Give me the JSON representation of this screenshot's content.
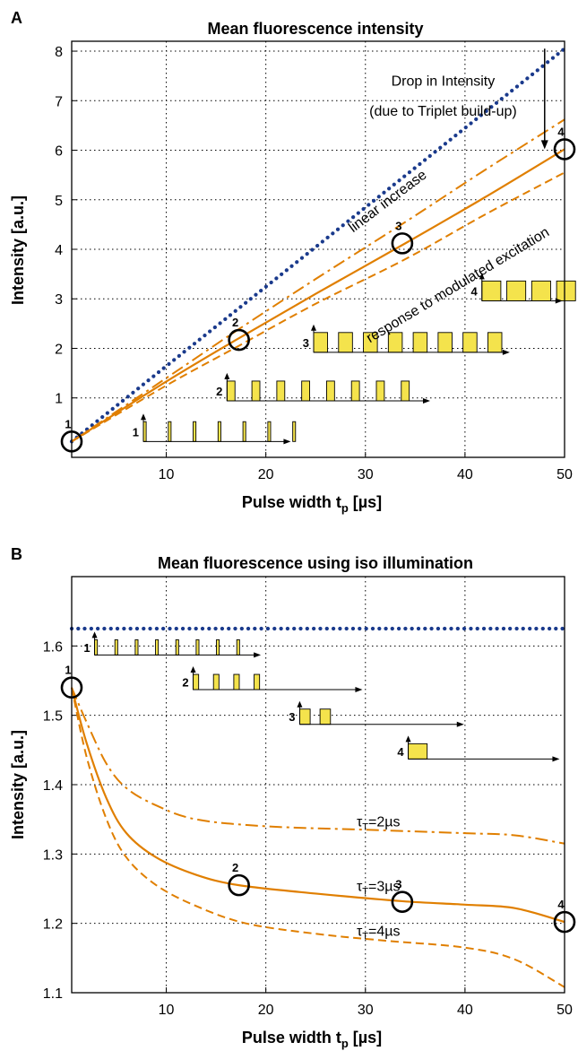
{
  "colors": {
    "orange": "#E07F00",
    "blue": "#1A3A8C",
    "pulse_fill": "#F4E34C",
    "axis": "#000000",
    "grid": "#000000"
  },
  "chart_data": [
    {
      "panel_label": "A",
      "type": "line",
      "title": "Mean fluorescence intensity",
      "xlabel": "Pulse width t",
      "xlabel_sub": "p",
      "xlabel_unit": " [µs]",
      "ylabel": "Intensity [a.u.]",
      "xlim": [
        0.5,
        50
      ],
      "ylim": [
        -0.2,
        8.2
      ],
      "xticks": [
        10,
        20,
        30,
        40,
        50
      ],
      "yticks": [
        1,
        2,
        3,
        4,
        5,
        6,
        7,
        8
      ],
      "grid": true,
      "series": [
        {
          "style": "dotted-blue",
          "x": [
            0.5,
            50
          ],
          "y": [
            0.12,
            8.05
          ]
        },
        {
          "style": "dashdot-orange",
          "x": [
            0.5,
            10,
            17,
            25,
            34,
            42,
            50
          ],
          "y": [
            0.12,
            1.4,
            2.35,
            3.4,
            4.55,
            5.6,
            6.62
          ]
        },
        {
          "style": "solid-orange",
          "x": [
            0.5,
            10,
            17,
            25,
            34,
            42,
            50
          ],
          "y": [
            0.12,
            1.33,
            2.17,
            3.1,
            4.12,
            5.05,
            6.02
          ]
        },
        {
          "style": "dashed-orange",
          "x": [
            0.5,
            10,
            17,
            25,
            34,
            42,
            50
          ],
          "y": [
            0.12,
            1.25,
            2.02,
            2.9,
            3.8,
            4.7,
            5.55
          ]
        }
      ],
      "markers": [
        {
          "label": "1",
          "x": 0.5,
          "y": 0.12
        },
        {
          "label": "2",
          "x": 17.3,
          "y": 2.17
        },
        {
          "label": "3",
          "x": 33.7,
          "y": 4.12
        },
        {
          "label": "4",
          "x": 50,
          "y": 6.02
        }
      ],
      "annotations": [
        {
          "text": "Drop in Intensity",
          "x": 37.8,
          "y": 7.3
        },
        {
          "text": "(due to Triplet build-up)",
          "x": 37.8,
          "y": 6.7
        }
      ],
      "rotated_labels": [
        {
          "text": "linear increase",
          "x": 32.5,
          "y": 4.9,
          "angle": -37
        },
        {
          "text": "response to modulated excitation",
          "x": 39.5,
          "y": 3.2,
          "angle": -31
        }
      ],
      "arrow": {
        "x": 48,
        "y_from": 8.05,
        "y_to": 6.02
      },
      "pulse_trains": [
        {
          "label": "1",
          "x": 7.7,
          "y": 0.12,
          "width": 0.28,
          "period": 2.5,
          "count": 7,
          "height": 0.4,
          "axis_end": 22.5
        },
        {
          "label": "2",
          "x": 16.1,
          "y": 0.94,
          "width": 0.8,
          "period": 2.5,
          "count": 8,
          "height": 0.4,
          "axis_end": 36.5
        },
        {
          "label": "3",
          "x": 24.8,
          "y": 1.92,
          "width": 1.4,
          "period": 2.5,
          "count": 8,
          "height": 0.4,
          "axis_end": 44.5
        },
        {
          "label": "4",
          "x": 41.7,
          "y": 2.96,
          "width": 1.9,
          "period": 2.5,
          "count": 8,
          "height": 0.4,
          "axis_end": 49.8
        }
      ]
    },
    {
      "panel_label": "B",
      "type": "line",
      "title": "Mean fluorescence using iso illumination",
      "xlabel": "Pulse width t",
      "xlabel_sub": "p",
      "xlabel_unit": " [µs]",
      "ylabel": "Intensity [a.u.]",
      "xlim": [
        0.5,
        50
      ],
      "ylim": [
        1.1,
        1.7
      ],
      "xticks": [
        10,
        20,
        30,
        40,
        50
      ],
      "yticks": [
        1.1,
        1.2,
        1.3,
        1.4,
        1.5,
        1.6
      ],
      "grid": true,
      "series": [
        {
          "style": "dotted-blue",
          "x": [
            0.5,
            50
          ],
          "y": [
            1.625,
            1.625
          ]
        },
        {
          "style": "dashdot-orange",
          "x": [
            0.5,
            2,
            4,
            6,
            9,
            13,
            20,
            30,
            40,
            45,
            50
          ],
          "y": [
            1.54,
            1.49,
            1.43,
            1.395,
            1.37,
            1.35,
            1.34,
            1.335,
            1.33,
            1.327,
            1.315
          ]
        },
        {
          "style": "solid-orange",
          "x": [
            0.5,
            2,
            4,
            6,
            9,
            13,
            17.3,
            25,
            33.7,
            40,
            45,
            50
          ],
          "y": [
            1.54,
            1.46,
            1.38,
            1.33,
            1.295,
            1.27,
            1.255,
            1.243,
            1.232,
            1.227,
            1.222,
            1.202
          ]
        },
        {
          "style": "dashed-orange",
          "x": [
            0.5,
            2,
            4,
            6,
            9,
            13,
            18,
            25,
            32,
            40,
            45,
            50
          ],
          "y": [
            1.54,
            1.44,
            1.35,
            1.295,
            1.255,
            1.225,
            1.2,
            1.185,
            1.175,
            1.165,
            1.148,
            1.108
          ]
        }
      ],
      "markers": [
        {
          "label": "1",
          "x": 0.5,
          "y": 1.54
        },
        {
          "label": "2",
          "x": 17.3,
          "y": 1.255
        },
        {
          "label": "3",
          "x": 33.7,
          "y": 1.231
        },
        {
          "label": "4",
          "x": 50,
          "y": 1.202
        }
      ],
      "series_labels": [
        {
          "sym": "τ",
          "sub": "T",
          "rest": "=2µs",
          "x": 31.3,
          "y": 1.34
        },
        {
          "sym": "τ",
          "sub": "T",
          "rest": "=3µs",
          "x": 31.3,
          "y": 1.247
        },
        {
          "sym": "τ",
          "sub": "T",
          "rest": "=4µs",
          "x": 31.3,
          "y": 1.182
        }
      ],
      "pulse_trains": [
        {
          "label": "1",
          "x": 2.8,
          "y": 1.587,
          "width": 0.28,
          "period": 2.04,
          "count": 8,
          "height": 0.022,
          "axis_end": 19.5
        },
        {
          "label": "2",
          "x": 12.7,
          "y": 1.537,
          "width": 0.55,
          "period": 2.04,
          "count": 4,
          "height": 0.022,
          "axis_end": 29.7
        },
        {
          "label": "3",
          "x": 23.4,
          "y": 1.487,
          "width": 1.05,
          "period": 2.04,
          "count": 2,
          "height": 0.022,
          "axis_end": 39.9
        },
        {
          "label": "4",
          "x": 34.3,
          "y": 1.437,
          "width": 1.9,
          "period": 2.04,
          "count": 1,
          "height": 0.022,
          "axis_end": 49.5
        }
      ]
    }
  ]
}
